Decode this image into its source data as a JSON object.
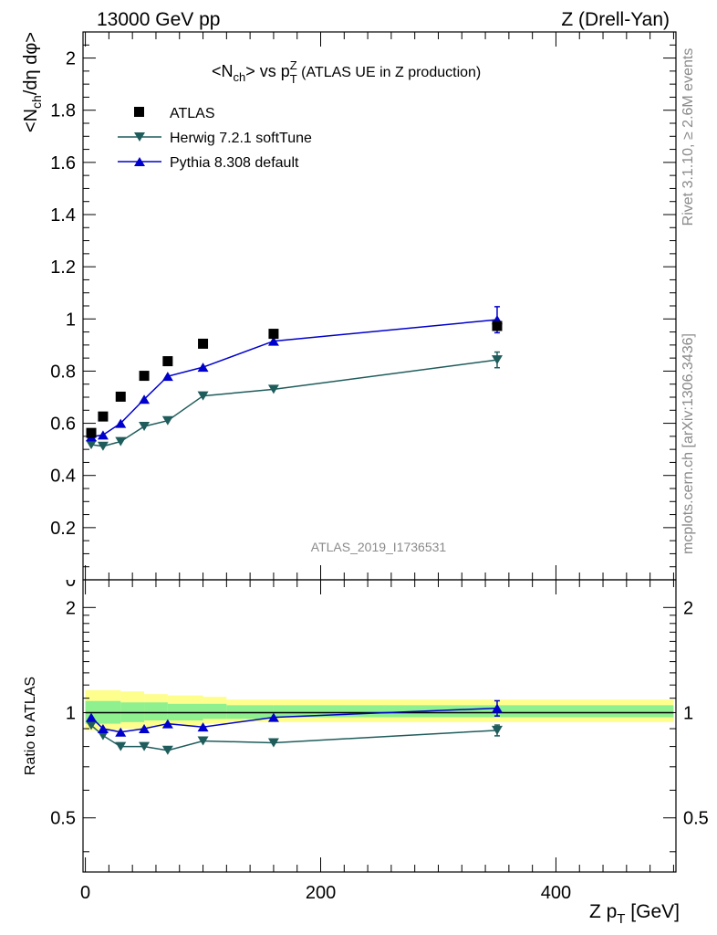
{
  "header": {
    "energy_label": "13000 GeV pp",
    "process_label": "Z (Drell-Yan)"
  },
  "side_labels": {
    "rivet": "Rivet 3.1.10, ≥ 2.6M events",
    "mcplots": "mcplots.cern.ch [arXiv:1306.3436]"
  },
  "chart_data": {
    "type": "scatter",
    "title_main": "<N",
    "title_ch": "ch",
    "title_mid": "> vs p",
    "title_sup": "Z",
    "title_sub": "T",
    "title_tail": " (ATLAS UE in Z production)",
    "ylabel_top": "<N",
    "ylabel_top_sub": "ch",
    "ylabel_top_tail": "/dη dφ>",
    "ylabel_ratio": "Ratio to ATLAS",
    "xlabel_main": "Z p",
    "xlabel_sub": "T",
    "xlabel_tail": " [GeV]",
    "analysis_id": "ATLAS_2019_I1736531",
    "xlim": [
      -2,
      502
    ],
    "ylim_top": [
      0,
      2.1
    ],
    "ylim_ratio": [
      0.35,
      2.4
    ],
    "y_ticks_top": [
      "0",
      "0.2",
      "0.4",
      "0.6",
      "0.8",
      "1",
      "1.2",
      "1.4",
      "1.6",
      "1.8",
      "2"
    ],
    "y_tick_values_top": [
      0,
      0.2,
      0.4,
      0.6,
      0.8,
      1.0,
      1.2,
      1.4,
      1.6,
      1.8,
      2.0
    ],
    "y_ticks_ratio": [
      "0.5",
      "1",
      "2"
    ],
    "y_tick_values_ratio": [
      0.5,
      1.0,
      2.0
    ],
    "x_ticks": [
      "0",
      "200",
      "400"
    ],
    "x_tick_values": [
      0,
      200,
      400
    ],
    "legend_position": "top-left",
    "x": [
      5,
      15,
      30,
      50,
      70,
      100,
      160,
      350
    ],
    "series": [
      {
        "name": "ATLAS",
        "marker": "square",
        "color": "#000000",
        "values": [
          0.563,
          0.626,
          0.702,
          0.782,
          0.838,
          0.905,
          0.943,
          0.973
        ]
      },
      {
        "name": "Herwig 7.2.1 softTune",
        "marker": "triangle-down",
        "color": "#1f5c5c",
        "values": [
          0.518,
          0.512,
          0.53,
          0.588,
          0.61,
          0.705,
          0.73,
          0.843
        ],
        "ratio": [
          0.92,
          0.86,
          0.8,
          0.8,
          0.78,
          0.83,
          0.82,
          0.89
        ],
        "last_error": 0.03
      },
      {
        "name": "Pythia 8.308 default",
        "marker": "triangle-up",
        "color": "#0000cc",
        "values": [
          0.548,
          0.555,
          0.6,
          0.692,
          0.78,
          0.815,
          0.915,
          0.997
        ],
        "ratio": [
          0.97,
          0.9,
          0.88,
          0.9,
          0.93,
          0.91,
          0.97,
          1.03
        ],
        "last_error": 0.05
      }
    ],
    "bands": {
      "edges": [
        0,
        30,
        50,
        70,
        100,
        120,
        160,
        500
      ],
      "yellow_lo": [
        0.89,
        0.9,
        0.91,
        0.92,
        0.93,
        0.94,
        0.94
      ],
      "yellow_hi": [
        1.16,
        1.15,
        1.13,
        1.12,
        1.11,
        1.09,
        1.09
      ],
      "green_lo": [
        0.93,
        0.94,
        0.95,
        0.95,
        0.96,
        0.96,
        0.97
      ],
      "green_hi": [
        1.08,
        1.07,
        1.07,
        1.06,
        1.06,
        1.05,
        1.05
      ],
      "yellow_color": "#fefe8c",
      "green_color": "#8ef08e"
    }
  }
}
